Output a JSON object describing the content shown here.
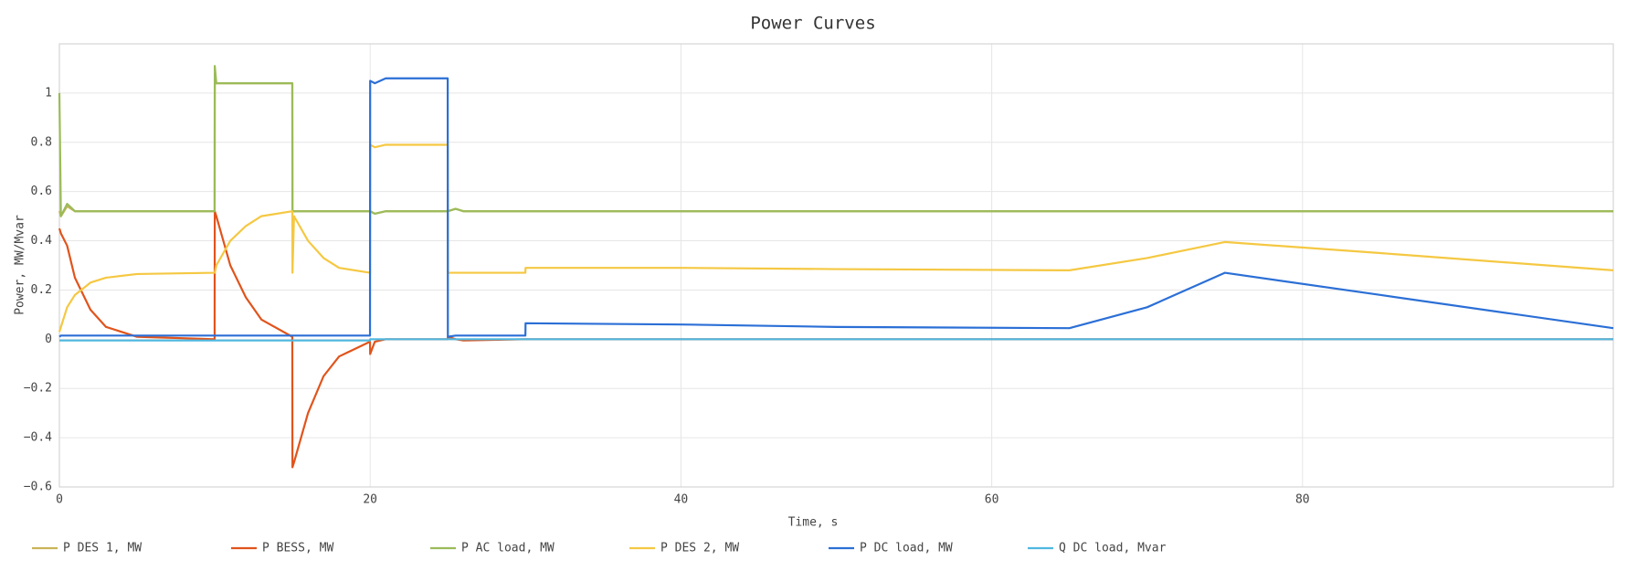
{
  "chart_data": {
    "type": "line",
    "title": "Power Curves",
    "x_label": "Time, s",
    "y_label": "Power, MW/Mvar",
    "x": [
      0,
      0.1,
      0.5,
      1,
      2,
      3,
      5,
      9.99,
      10,
      10.1,
      11,
      12,
      13,
      14.99,
      15,
      15.1,
      16,
      17,
      18,
      19.99,
      20,
      20.3,
      21,
      24.99,
      25,
      25.5,
      26,
      29.99,
      30,
      40,
      50,
      65,
      70,
      75,
      85,
      100
    ],
    "series": [
      {
        "name": "P DES 1, MW",
        "color": "#c9b458",
        "values": [
          0.52,
          0.5,
          0.54,
          0.52,
          0.52,
          0.52,
          0.52,
          0.52,
          1.04,
          1.04,
          1.04,
          1.04,
          1.04,
          1.04,
          0.52,
          0.52,
          0.52,
          0.52,
          0.52,
          0.52,
          0.52,
          0.51,
          0.52,
          0.52,
          0.52,
          0.53,
          0.52,
          0.52,
          0.52,
          0.52,
          0.52,
          0.52,
          0.52,
          0.52,
          0.52,
          0.52
        ]
      },
      {
        "name": "P BESS, MW",
        "color": "#e0541c",
        "values": [
          0.45,
          0.43,
          0.38,
          0.25,
          0.12,
          0.05,
          0.01,
          0.0,
          0.52,
          0.5,
          0.3,
          0.17,
          0.08,
          0.01,
          -0.52,
          -0.5,
          -0.3,
          -0.15,
          -0.07,
          -0.01,
          -0.06,
          -0.01,
          0,
          0,
          0.01,
          0,
          -0.005,
          0,
          0,
          0,
          0,
          0,
          0,
          0,
          0,
          0
        ]
      },
      {
        "name": "P AC load, MW",
        "color": "#9bbb59",
        "values": [
          1.0,
          0.5,
          0.55,
          0.52,
          0.52,
          0.52,
          0.52,
          0.52,
          1.11,
          1.04,
          1.04,
          1.04,
          1.04,
          1.04,
          0.52,
          0.52,
          0.52,
          0.52,
          0.52,
          0.52,
          0.52,
          0.51,
          0.52,
          0.52,
          0.52,
          0.53,
          0.52,
          0.52,
          0.52,
          0.52,
          0.52,
          0.52,
          0.52,
          0.52,
          0.52,
          0.52
        ]
      },
      {
        "name": "P DES 2, MW",
        "color": "#f5c842",
        "values": [
          0.03,
          0.05,
          0.13,
          0.18,
          0.23,
          0.25,
          0.265,
          0.27,
          0.27,
          0.3,
          0.4,
          0.46,
          0.5,
          0.52,
          0.27,
          0.5,
          0.4,
          0.33,
          0.29,
          0.27,
          0.79,
          0.78,
          0.79,
          0.79,
          0.27,
          0.27,
          0.27,
          0.27,
          0.29,
          0.29,
          0.285,
          0.28,
          0.33,
          0.395,
          0.35,
          0.28
        ]
      },
      {
        "name": "P DC load, MW",
        "color": "#2b6fd6",
        "values": [
          0.01,
          0.015,
          0.015,
          0.015,
          0.015,
          0.015,
          0.015,
          0.015,
          0.015,
          0.015,
          0.015,
          0.015,
          0.015,
          0.015,
          0.015,
          0.015,
          0.015,
          0.015,
          0.015,
          0.015,
          1.05,
          1.04,
          1.06,
          1.06,
          0.01,
          0.015,
          0.015,
          0.015,
          0.065,
          0.06,
          0.05,
          0.045,
          0.13,
          0.27,
          0.18,
          0.045
        ]
      },
      {
        "name": "Q DC load, Mvar",
        "color": "#4fb8e0",
        "values": [
          -0.005,
          -0.005,
          -0.005,
          -0.005,
          -0.005,
          -0.005,
          -0.005,
          -0.005,
          -0.005,
          -0.005,
          -0.005,
          -0.005,
          -0.005,
          -0.005,
          -0.005,
          -0.005,
          -0.005,
          -0.005,
          -0.005,
          -0.005,
          0,
          0,
          0,
          0,
          0,
          0,
          0,
          0,
          0,
          0,
          0,
          0,
          0,
          0,
          0,
          0
        ]
      }
    ],
    "xlim": [
      0,
      100
    ],
    "xticks": [
      0,
      20,
      40,
      60,
      80
    ],
    "ylim": [
      -0.6,
      1.2
    ],
    "yticks": [
      {
        "value": -0.6,
        "label": "−0.6"
      },
      {
        "value": -0.4,
        "label": "−0.4"
      },
      {
        "value": -0.2,
        "label": "−0.2"
      },
      0,
      0.2,
      0.4,
      0.6,
      0.8,
      1
    ],
    "grid": true,
    "legend": "bottom"
  }
}
